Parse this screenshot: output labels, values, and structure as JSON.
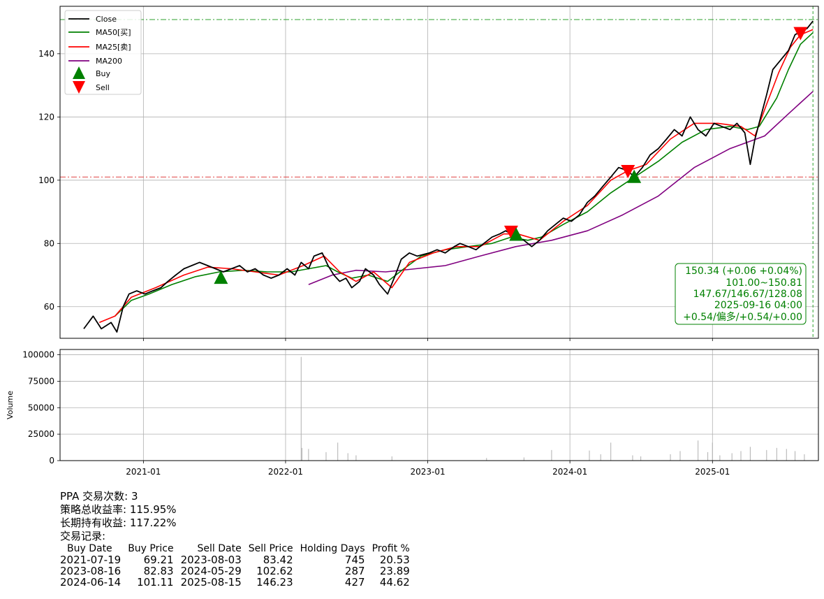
{
  "chart_data": [
    {
      "type": "line",
      "xlim": [
        "2020-06-01",
        "2025-09-30"
      ],
      "ylim": [
        50,
        155
      ],
      "x_ticks": [
        "2021-01",
        "2022-01",
        "2023-01",
        "2024-01",
        "2025-01"
      ],
      "y_ticks": [
        60,
        80,
        100,
        120,
        140
      ],
      "grid": true,
      "legend_position": "top-left",
      "series": [
        {
          "name": "Close",
          "color": "#000000",
          "points": [
            [
              "2020-08-01",
              53
            ],
            [
              "2020-08-25",
              57
            ],
            [
              "2020-09-15",
              53
            ],
            [
              "2020-10-10",
              55
            ],
            [
              "2020-10-25",
              52
            ],
            [
              "2020-11-10",
              60
            ],
            [
              "2020-11-25",
              64
            ],
            [
              "2020-12-15",
              65
            ],
            [
              "2021-01-05",
              64
            ],
            [
              "2021-01-25",
              65
            ],
            [
              "2021-02-15",
              66
            ],
            [
              "2021-03-05",
              68
            ],
            [
              "2021-03-25",
              70
            ],
            [
              "2021-04-15",
              72
            ],
            [
              "2021-05-05",
              73
            ],
            [
              "2021-05-25",
              74
            ],
            [
              "2021-06-15",
              73
            ],
            [
              "2021-07-05",
              72
            ],
            [
              "2021-07-25",
              71
            ],
            [
              "2021-08-15",
              72
            ],
            [
              "2021-09-05",
              73
            ],
            [
              "2021-09-25",
              71
            ],
            [
              "2021-10-15",
              72
            ],
            [
              "2021-11-05",
              70
            ],
            [
              "2021-11-25",
              69
            ],
            [
              "2021-12-15",
              70
            ],
            [
              "2022-01-05",
              72
            ],
            [
              "2022-01-25",
              70
            ],
            [
              "2022-02-10",
              74
            ],
            [
              "2022-03-01",
              72
            ],
            [
              "2022-03-15",
              76
            ],
            [
              "2022-04-05",
              77
            ],
            [
              "2022-04-20",
              73
            ],
            [
              "2022-05-05",
              70
            ],
            [
              "2022-05-20",
              68
            ],
            [
              "2022-06-05",
              69
            ],
            [
              "2022-06-20",
              66
            ],
            [
              "2022-07-10",
              68
            ],
            [
              "2022-07-25",
              72
            ],
            [
              "2022-08-15",
              70
            ],
            [
              "2022-08-30",
              67
            ],
            [
              "2022-09-20",
              64
            ],
            [
              "2022-10-10",
              70
            ],
            [
              "2022-10-25",
              75
            ],
            [
              "2022-11-15",
              77
            ],
            [
              "2022-12-05",
              76
            ],
            [
              "2023-01-05",
              77
            ],
            [
              "2023-01-25",
              78
            ],
            [
              "2023-02-15",
              77
            ],
            [
              "2023-03-10",
              79
            ],
            [
              "2023-03-25",
              80
            ],
            [
              "2023-04-15",
              79
            ],
            [
              "2023-05-05",
              78
            ],
            [
              "2023-05-25",
              80
            ],
            [
              "2023-06-15",
              82
            ],
            [
              "2023-07-05",
              83
            ],
            [
              "2023-07-20",
              84
            ],
            [
              "2023-08-03",
              83
            ],
            [
              "2023-08-16",
              82
            ],
            [
              "2023-09-05",
              81
            ],
            [
              "2023-09-25",
              79
            ],
            [
              "2023-10-15",
              81
            ],
            [
              "2023-11-05",
              84
            ],
            [
              "2023-11-25",
              86
            ],
            [
              "2023-12-15",
              88
            ],
            [
              "2024-01-05",
              87
            ],
            [
              "2024-01-25",
              89
            ],
            [
              "2024-02-15",
              93
            ],
            [
              "2024-03-05",
              95
            ],
            [
              "2024-03-25",
              98
            ],
            [
              "2024-04-15",
              101
            ],
            [
              "2024-05-05",
              104
            ],
            [
              "2024-05-29",
              103
            ],
            [
              "2024-06-14",
              101
            ],
            [
              "2024-07-05",
              104
            ],
            [
              "2024-07-25",
              108
            ],
            [
              "2024-08-15",
              110
            ],
            [
              "2024-09-05",
              113
            ],
            [
              "2024-09-25",
              116
            ],
            [
              "2024-10-15",
              114
            ],
            [
              "2024-11-05",
              120
            ],
            [
              "2024-11-25",
              116
            ],
            [
              "2024-12-15",
              114
            ],
            [
              "2025-01-05",
              118
            ],
            [
              "2025-01-25",
              117
            ],
            [
              "2025-02-15",
              116
            ],
            [
              "2025-03-05",
              118
            ],
            [
              "2025-03-25",
              115
            ],
            [
              "2025-04-08",
              105
            ],
            [
              "2025-04-20",
              113
            ],
            [
              "2025-05-05",
              120
            ],
            [
              "2025-05-20",
              127
            ],
            [
              "2025-06-05",
              135
            ],
            [
              "2025-06-25",
              138
            ],
            [
              "2025-07-15",
              141
            ],
            [
              "2025-08-01",
              146
            ],
            [
              "2025-08-15",
              147
            ],
            [
              "2025-09-01",
              148
            ],
            [
              "2025-09-16",
              150.34
            ]
          ]
        },
        {
          "name": "MA50[买]",
          "color": "#008000",
          "points": [
            [
              "2020-10-20",
              57
            ],
            [
              "2020-12-01",
              62
            ],
            [
              "2021-01-15",
              64
            ],
            [
              "2021-03-15",
              67
            ],
            [
              "2021-05-15",
              69.5
            ],
            [
              "2021-07-15",
              71
            ],
            [
              "2021-09-15",
              71.5
            ],
            [
              "2021-11-15",
              71
            ],
            [
              "2022-01-15",
              71
            ],
            [
              "2022-03-01",
              72
            ],
            [
              "2022-04-15",
              73
            ],
            [
              "2022-05-15",
              71
            ],
            [
              "2022-06-20",
              69
            ],
            [
              "2022-08-01",
              70
            ],
            [
              "2022-09-20",
              68
            ],
            [
              "2022-11-01",
              72
            ],
            [
              "2022-12-15",
              76
            ],
            [
              "2023-02-15",
              78
            ],
            [
              "2023-04-15",
              79
            ],
            [
              "2023-06-15",
              80
            ],
            [
              "2023-08-03",
              82
            ],
            [
              "2023-09-15",
              81
            ],
            [
              "2023-10-20",
              82
            ],
            [
              "2023-12-15",
              86
            ],
            [
              "2024-02-15",
              90
            ],
            [
              "2024-04-15",
              96
            ],
            [
              "2024-06-15",
              101
            ],
            [
              "2024-08-15",
              106
            ],
            [
              "2024-10-15",
              112
            ],
            [
              "2024-12-15",
              116
            ],
            [
              "2025-02-15",
              117
            ],
            [
              "2025-04-01",
              116
            ],
            [
              "2025-05-01",
              117
            ],
            [
              "2025-06-15",
              126
            ],
            [
              "2025-07-15",
              135
            ],
            [
              "2025-08-15",
              143
            ],
            [
              "2025-09-16",
              146.67
            ]
          ]
        },
        {
          "name": "MA25[卖]",
          "color": "#ff0000",
          "points": [
            [
              "2020-09-10",
              55
            ],
            [
              "2020-10-20",
              57
            ],
            [
              "2020-12-01",
              63
            ],
            [
              "2021-02-01",
              66
            ],
            [
              "2021-04-15",
              70
            ],
            [
              "2021-06-15",
              72.5
            ],
            [
              "2021-08-15",
              72
            ],
            [
              "2021-10-15",
              71
            ],
            [
              "2021-12-15",
              70
            ],
            [
              "2022-02-15",
              73
            ],
            [
              "2022-04-10",
              76
            ],
            [
              "2022-05-20",
              71
            ],
            [
              "2022-07-01",
              68
            ],
            [
              "2022-08-15",
              71
            ],
            [
              "2022-10-01",
              66
            ],
            [
              "2022-11-15",
              74
            ],
            [
              "2023-01-15",
              77
            ],
            [
              "2023-03-15",
              79
            ],
            [
              "2023-05-15",
              79
            ],
            [
              "2023-07-15",
              83
            ],
            [
              "2023-08-20",
              83
            ],
            [
              "2023-10-15",
              81
            ],
            [
              "2023-12-15",
              87
            ],
            [
              "2024-02-15",
              92
            ],
            [
              "2024-04-15",
              100
            ],
            [
              "2024-05-29",
              103
            ],
            [
              "2024-07-15",
              105
            ],
            [
              "2024-09-15",
              113
            ],
            [
              "2024-11-15",
              118
            ],
            [
              "2025-01-15",
              118
            ],
            [
              "2025-03-15",
              117
            ],
            [
              "2025-04-20",
              114
            ],
            [
              "2025-05-20",
              124
            ],
            [
              "2025-06-20",
              134
            ],
            [
              "2025-07-20",
              142
            ],
            [
              "2025-08-15",
              146
            ],
            [
              "2025-09-16",
              147.67
            ]
          ]
        },
        {
          "name": "MA200",
          "color": "#800080",
          "points": [
            [
              "2022-03-01",
              67
            ],
            [
              "2022-05-01",
              70
            ],
            [
              "2022-07-01",
              71.5
            ],
            [
              "2022-09-15",
              71
            ],
            [
              "2022-12-01",
              72
            ],
            [
              "2023-02-15",
              73
            ],
            [
              "2023-05-15",
              76
            ],
            [
              "2023-08-15",
              79
            ],
            [
              "2023-11-15",
              81
            ],
            [
              "2024-02-15",
              84
            ],
            [
              "2024-05-15",
              89
            ],
            [
              "2024-08-15",
              95
            ],
            [
              "2024-11-15",
              104
            ],
            [
              "2025-02-15",
              110
            ],
            [
              "2025-05-15",
              114
            ],
            [
              "2025-07-15",
              121
            ],
            [
              "2025-09-16",
              128.08
            ]
          ]
        }
      ],
      "buy_signals": [
        [
          "2021-07-19",
          69.21
        ],
        [
          "2023-08-16",
          82.83
        ],
        [
          "2024-06-14",
          101.11
        ]
      ],
      "sell_signals": [
        [
          "2023-08-03",
          83.42
        ],
        [
          "2024-05-29",
          102.62
        ],
        [
          "2025-08-15",
          146.23
        ]
      ],
      "reference_lines": [
        {
          "orientation": "horizontal",
          "value": 150.81,
          "color": "#2ca02c",
          "style": "dashdot"
        },
        {
          "orientation": "horizontal",
          "value": 101.0,
          "color": "#e04040",
          "style": "dashdot"
        },
        {
          "orientation": "vertical",
          "value": "2025-09-16",
          "color": "#2ca02c",
          "style": "dashed"
        }
      ],
      "annotation": [
        "150.34 (+0.06 +0.04%)",
        "101.00~150.81",
        "147.67/146.67/128.08",
        "2025-09-16 04:00",
        "+0.54/偏多/+0.54/+0.00"
      ],
      "annotation_color": "#008000"
    },
    {
      "type": "bar",
      "ylabel": "Volume",
      "ylim": [
        0,
        105000
      ],
      "y_ticks": [
        "0",
        "25000",
        "50000",
        "75000",
        "100000"
      ],
      "x_ticks": [
        "2021-01",
        "2022-01",
        "2023-01",
        "2024-01",
        "2025-01"
      ],
      "grid": true,
      "color": "#b0b0b0",
      "bars": [
        [
          "2022-02-10",
          98000
        ],
        [
          "2022-02-12",
          12000
        ],
        [
          "2022-03-01",
          11000
        ],
        [
          "2022-05-15",
          17000
        ],
        [
          "2022-04-15",
          8000
        ],
        [
          "2022-06-10",
          7000
        ],
        [
          "2022-07-01",
          5000
        ],
        [
          "2022-10-01",
          4000
        ],
        [
          "2023-06-01",
          2500
        ],
        [
          "2023-09-05",
          3000
        ],
        [
          "2023-11-15",
          10000
        ],
        [
          "2024-02-20",
          9500
        ],
        [
          "2024-03-20",
          6000
        ],
        [
          "2024-04-15",
          17000
        ],
        [
          "2024-06-10",
          5000
        ],
        [
          "2024-07-01",
          4000
        ],
        [
          "2024-09-15",
          6000
        ],
        [
          "2024-10-10",
          9000
        ],
        [
          "2024-11-25",
          19000
        ],
        [
          "2024-12-20",
          8000
        ],
        [
          "2025-01-01",
          17000
        ],
        [
          "2025-01-20",
          5000
        ],
        [
          "2025-02-20",
          7000
        ],
        [
          "2025-03-15",
          9000
        ],
        [
          "2025-04-08",
          13000
        ],
        [
          "2025-05-20",
          10000
        ],
        [
          "2025-06-15",
          12000
        ],
        [
          "2025-07-10",
          11000
        ],
        [
          "2025-08-01",
          9000
        ],
        [
          "2025-08-25",
          6000
        ]
      ]
    }
  ],
  "info": {
    "lines": [
      "PPA 交易次数: 3",
      "策略总收益率: 115.95%",
      "长期持有收益: 117.22%",
      "交易记录:"
    ],
    "table_headers": [
      "Buy Date",
      "Buy Price",
      "Sell Date",
      "Sell Price",
      "Holding Days",
      "Profit %"
    ],
    "table_rows": [
      [
        "2021-07-19",
        "69.21",
        "2023-08-03",
        "83.42",
        "745",
        "20.53"
      ],
      [
        "2023-08-16",
        "82.83",
        "2024-05-29",
        "102.62",
        "287",
        "23.89"
      ],
      [
        "2024-06-14",
        "101.11",
        "2025-08-15",
        "146.23",
        "427",
        "44.62"
      ]
    ]
  }
}
